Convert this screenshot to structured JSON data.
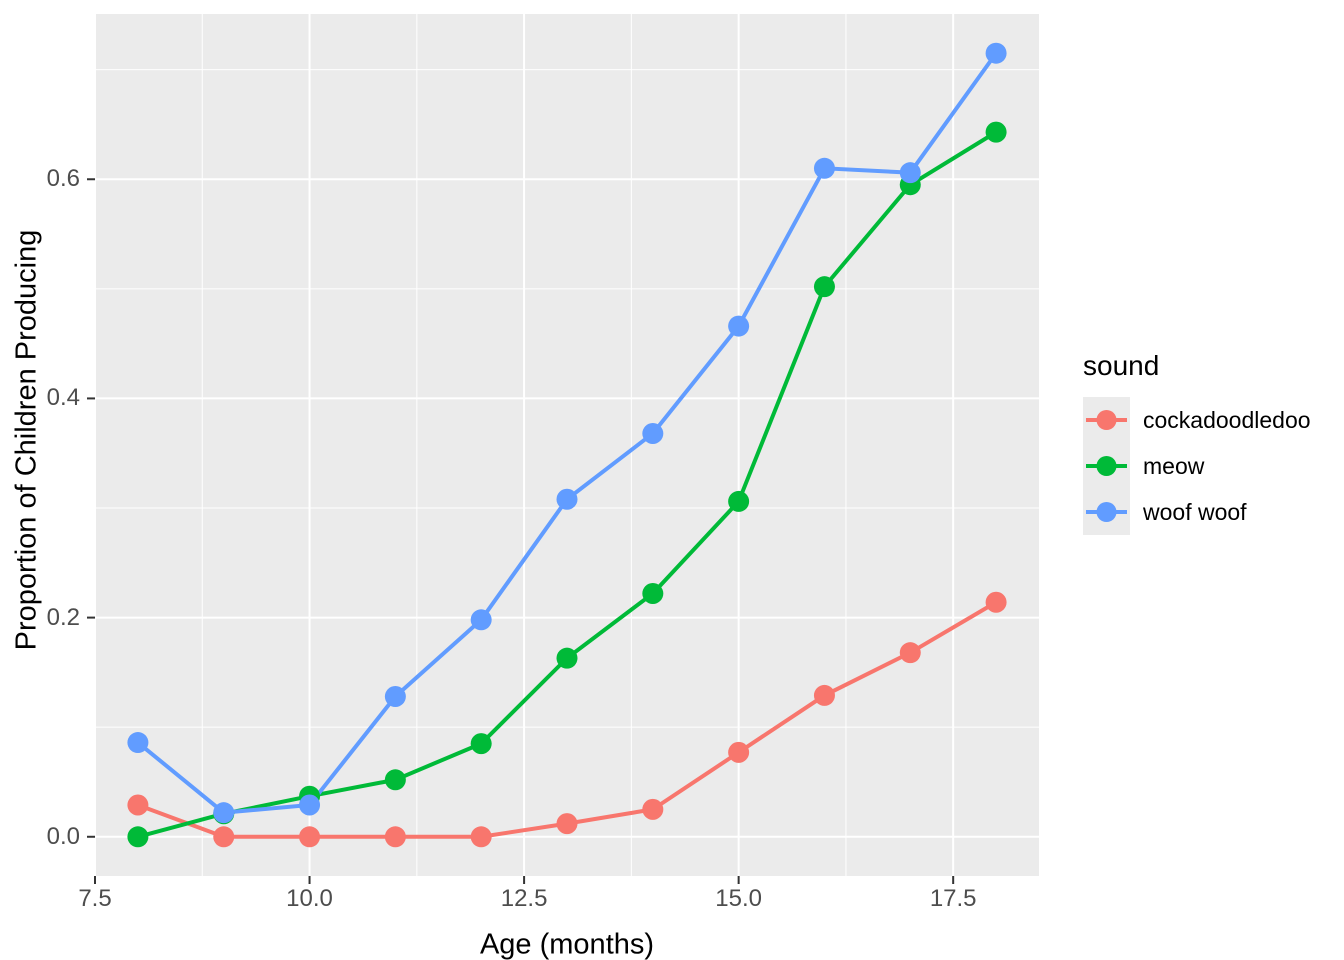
{
  "chart_data": {
    "type": "line",
    "title": "",
    "xlabel": "Age (months)",
    "ylabel": "Proportion of Children Producing",
    "x": [
      8,
      9,
      10,
      11,
      12,
      13,
      14,
      15,
      16,
      17,
      18
    ],
    "series": [
      {
        "name": "cockadoodledoo",
        "color": "#F8766D",
        "values": [
          0.029,
          0.0,
          0.0,
          0.0,
          0.0,
          0.012,
          0.025,
          0.077,
          0.129,
          0.168,
          0.214
        ]
      },
      {
        "name": "meow",
        "color": "#00BA38",
        "values": [
          0.0,
          0.021,
          0.037,
          0.052,
          0.085,
          0.163,
          0.222,
          0.306,
          0.502,
          0.595,
          0.643
        ]
      },
      {
        "name": "woof woof",
        "color": "#619CFF",
        "values": [
          0.086,
          0.022,
          0.029,
          0.128,
          0.198,
          0.308,
          0.368,
          0.466,
          0.61,
          0.606,
          0.715
        ]
      }
    ],
    "legend": {
      "title": "sound",
      "position": "right"
    },
    "xlim": [
      7.5,
      18.5
    ],
    "ylim": [
      -0.0358,
      0.7508
    ],
    "x_ticks": [
      7.5,
      10.0,
      12.5,
      15.0,
      17.5
    ],
    "x_tick_labels": [
      "7.5",
      "10.0",
      "12.5",
      "15.0",
      "17.5"
    ],
    "y_ticks": [
      0.0,
      0.2,
      0.4,
      0.6
    ],
    "y_tick_labels": [
      "0.0",
      "0.2",
      "0.4",
      "0.6"
    ],
    "x_minor_ticks": [
      8.75,
      11.25,
      13.75,
      16.25
    ],
    "y_minor_ticks": [
      0.1,
      0.3,
      0.5,
      0.7
    ],
    "grid": true,
    "colors": {
      "panel_bg": "#EBEBEB",
      "grid": "#FFFFFF",
      "tick_text": "#4D4D4D",
      "axis_title": "#000000",
      "tick_mark": "#333333",
      "legend_key_bg": "#EBEBEB"
    }
  }
}
